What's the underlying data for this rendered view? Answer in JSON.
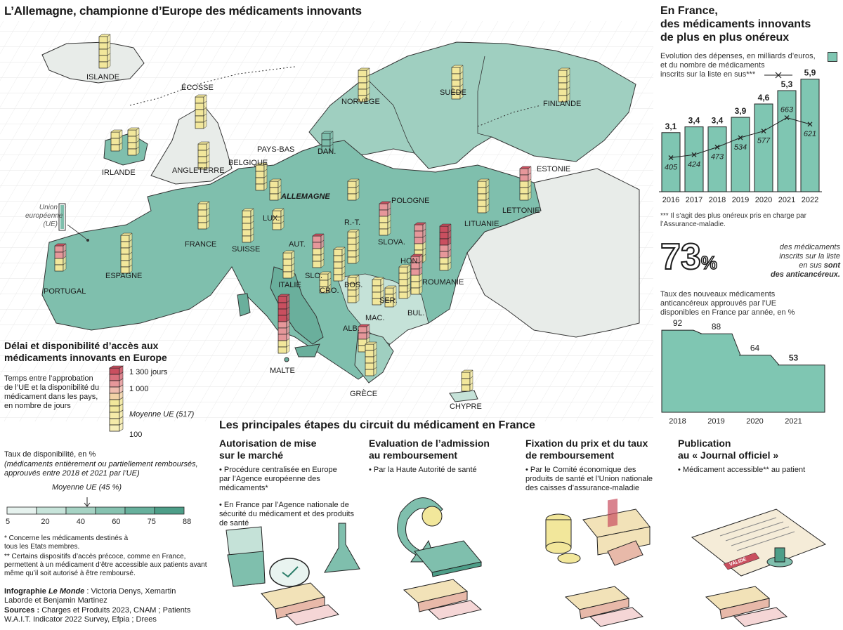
{
  "main_title": "L’Allemagne, championne d’Europe des médicaments innovants",
  "map": {
    "countries": {
      "islande": "ISLANDE",
      "ecosse": "ÉCOSSE",
      "irlande": "IRLANDE",
      "angleterre": "ANGLETERRE",
      "pays_bas": "PAYS-BAS",
      "belgique": "BELGIQUE",
      "dan": "DAN.",
      "norvege": "NORVÈGE",
      "suede": "SUÈDE",
      "finlande": "FINLANDE",
      "estonie": "ESTONIE",
      "lettonie": "LETTONIE",
      "lituanie": "LITUANIE",
      "pologne": "POLOGNE",
      "allemagne": "ALLEMAGNE",
      "lux": "LUX.",
      "france": "FRANCE",
      "suisse": "SUISSE",
      "aut": "AUT.",
      "rt": "R.-T.",
      "slova": "SLOVA.",
      "hon": "HON.",
      "roumanie": "ROUMANIE",
      "slo": "SLO.",
      "cro": "CRO.",
      "bos": "BOS.",
      "ser": "SER.",
      "bul": "BUL.",
      "mac": "MAC.",
      "alb": "ALB.",
      "italie": "ITALIE",
      "espagne": "ESPAGNE",
      "portugal": "PORTUGAL",
      "malte": "MALTE",
      "grece": "GRÈCE",
      "chypre": "CHYPRE"
    },
    "eu_legend": "Union européenne (UE)"
  },
  "legend": {
    "title": "Délai et disponibilité d’accès aux médicaments innovants en Europe",
    "days_desc": "Temps entre l’approbation de l’UE et la disponibilité du médicament dans les pays, en nombre de jours",
    "days_1300": "1 300 jours",
    "days_1000": "1 000",
    "days_avg": "Moyenne UE (517)",
    "days_100": "100",
    "rate_title": "Taux de disponibilité, en %",
    "rate_desc": "(médicaments entièrement ou partiellement remboursés, approuvés entre 2018 et 2021 par l’UE)",
    "rate_avg": "Moyenne UE (45 %)",
    "scale": [
      "5",
      "20",
      "40",
      "60",
      "75",
      "88"
    ],
    "scale_colors": [
      "#e6f2ee",
      "#c7e4da",
      "#a6d3c4",
      "#86c2b0",
      "#67b09c",
      "#4d9e88"
    ],
    "note1": "* Concerne les médicaments destinés à tous les Etats membres.",
    "note2": "** Certains dispositifs d’accès précoce, comme en France, permettent à un médicament d’être accessible aux patients avant même qu’il soit autorisé à être remboursé.",
    "credit_label": "Infographie",
    "credit_paper": "Le Monde",
    "credit_names": ": Victoria Denys, Xemartin Laborde et Benjamin Martinez",
    "sources_label": "Sources :",
    "sources": "Charges et Produits 2023, CNAM ; Patients W.A.I.T. Indicator 2022 Survey, Efpia ; Drees"
  },
  "france": {
    "title_l1": "En France,",
    "title_l2": "des médicaments innovants",
    "title_l3": "de plus en plus onéreux",
    "legend_bar": "Evolution des dépenses, en milliards d’euros,",
    "legend_line_a": "et du nombre de médicaments",
    "legend_line_b": "inscrits sur la liste en sus***",
    "footnote": "*** Il s’agit des plus onéreux pris en charge par l’Assurance-maladie.",
    "big_pct": "73",
    "big_pct_sign": "%",
    "pct_text_a": "des médicaments",
    "pct_text_b": "inscrits sur la liste",
    "pct_text_c": "en sus",
    "pct_text_d": "sont",
    "pct_text_e": "des anticancéreux.",
    "area_title": "Taux des nouveaux médicaments anticancéreux approuvés par l’UE disponibles en France par année, en %"
  },
  "chart_data": [
    {
      "type": "bar",
      "categories": [
        "2016",
        "2017",
        "2018",
        "2019",
        "2020",
        "2021",
        "2022"
      ],
      "series": [
        {
          "values": [
            3.1,
            3.4,
            3.4,
            3.9,
            4.6,
            5.3,
            5.9
          ],
          "labels": [
            "3,1",
            "3,4",
            "3,4",
            "3,9",
            "4,6",
            "5,3",
            "5,9"
          ]
        },
        {
          "type": "line",
          "values": [
            405,
            424,
            473,
            534,
            577,
            663,
            621
          ]
        }
      ],
      "ylim": [
        0,
        6
      ]
    },
    {
      "type": "area",
      "x": [
        "2018",
        "2019",
        "2020",
        "2021"
      ],
      "values": [
        92,
        88,
        64,
        53
      ],
      "ylim": [
        0,
        100
      ]
    }
  ],
  "steps": {
    "title": "Les principales étapes du circuit du médicament en France",
    "s1_title_a": "Autorisation de mise",
    "s1_title_b": "sur le marché",
    "s1_b1": "• Procédure centralisée en Europe par l’Agence européenne des médicaments*",
    "s1_b2": "• En France par l’Agence nationale de sécurité du médicament et des produits de santé",
    "s2_title_a": "Evaluation de l’admission",
    "s2_title_b": "au remboursement",
    "s2_b1": "• Par la Haute Autorité de santé",
    "s3_title_a": "Fixation du prix et du taux",
    "s3_title_b": "de remboursement",
    "s3_b1": "• Par le Comité économique des produits de santé et l’Union nationale des caisses d’assurance-maladie",
    "s4_title_a": "Publication",
    "s4_title_b": "au « Journal officiel »",
    "s4_b1": "• Médicament accessible** au patient",
    "stamp": "VALIDÉ"
  },
  "colors": {
    "eu_teal": "#7fbfad",
    "land_light": "#c5e2d8",
    "non_eu": "#e8ece9",
    "bar_teal": "#7fc6b2",
    "tower_red": "#c94f5f",
    "tower_yellow": "#f2e79b",
    "ink": "#1a1a1a"
  }
}
